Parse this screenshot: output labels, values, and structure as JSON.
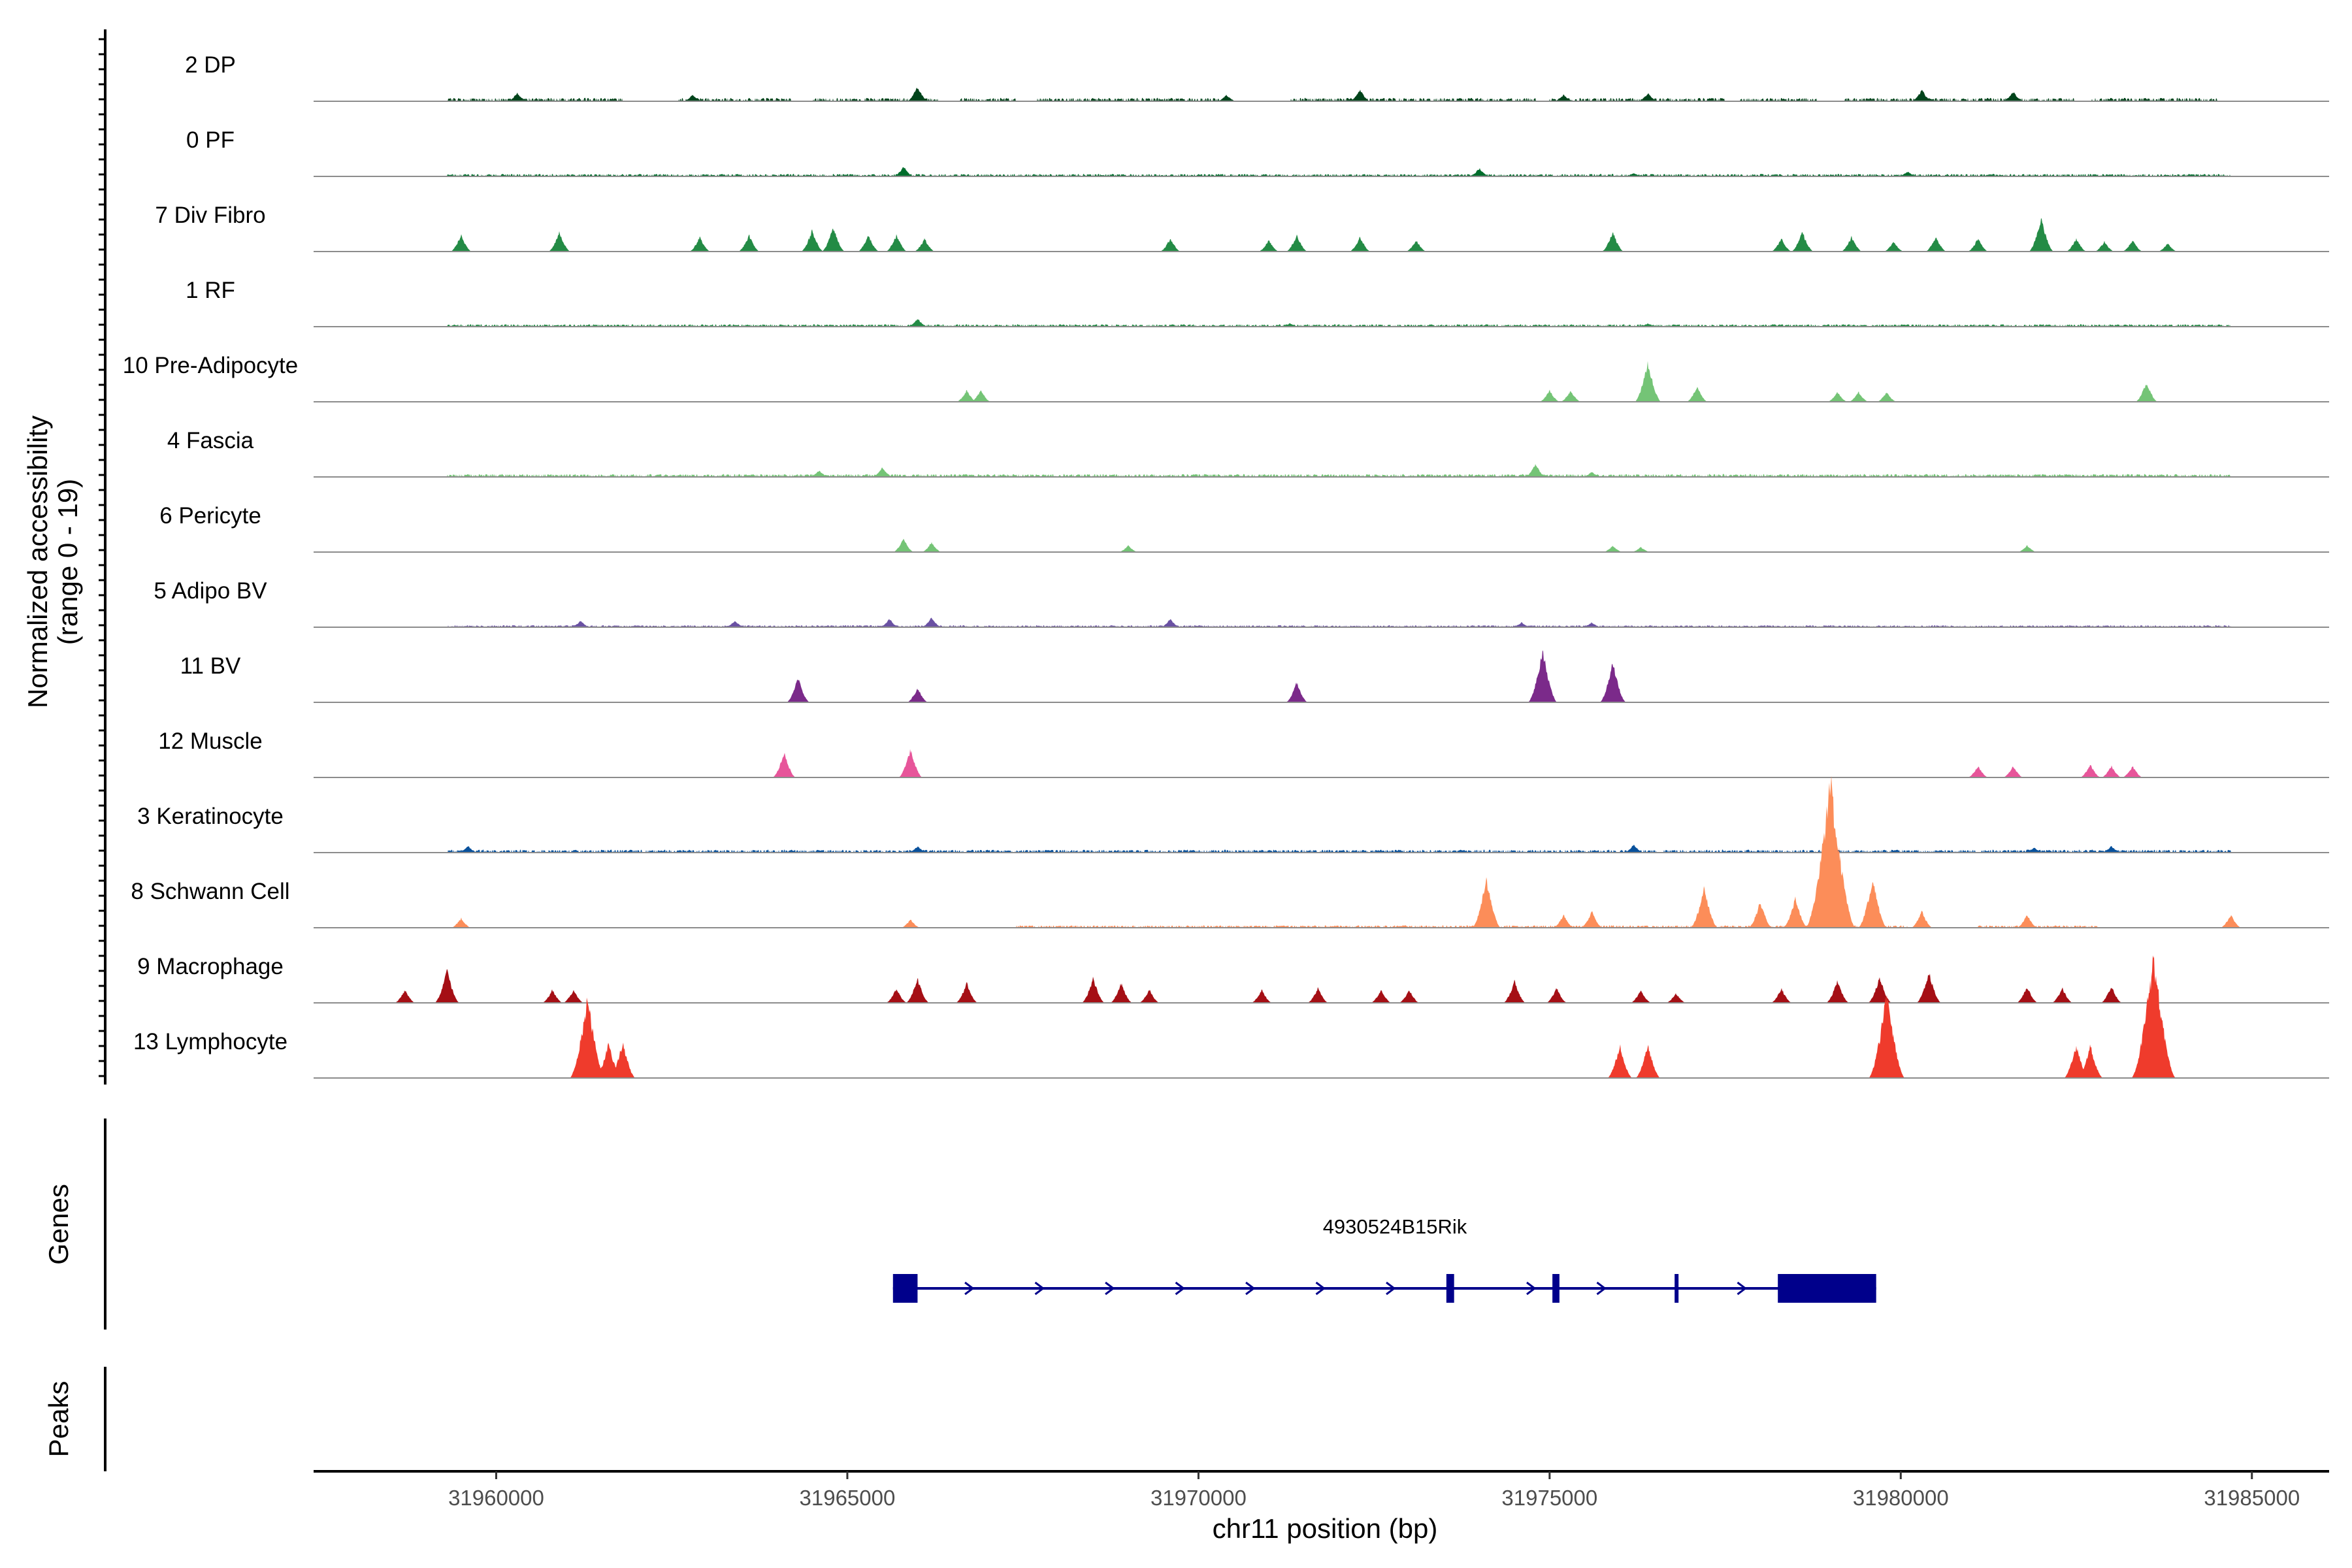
{
  "chart_data": {
    "type": "area",
    "subtype": "genome-coverage-tracks",
    "xlabel": "chr11 position (bp)",
    "ylabel": "Normalized accessibility",
    "ylabel_range": "(range 0 - 19)",
    "ylim": [
      0,
      19
    ],
    "xlim": [
      31957400,
      31986100
    ],
    "x_ticks": [
      31960000,
      31965000,
      31970000,
      31975000,
      31980000,
      31985000
    ],
    "x_tick_labels": [
      "31960000",
      "31965000",
      "31970000",
      "31975000",
      "31980000",
      "31985000"
    ],
    "genes_label": "Genes",
    "peaks_label": "Peaks",
    "series": [
      {
        "name": "2 DP",
        "color": "#00441b",
        "noise": 0.07,
        "regions": [
          [
            31959300,
            31961800
          ],
          [
            31962600,
            31964200
          ],
          [
            31964500,
            31966300
          ],
          [
            31966600,
            31967400
          ],
          [
            31967700,
            31970300
          ],
          [
            31971300,
            31974800
          ],
          [
            31975000,
            31977500
          ],
          [
            31977700,
            31978800
          ],
          [
            31979200,
            31982500
          ],
          [
            31982700,
            31984500
          ]
        ],
        "peaks": [
          [
            31960300,
            0.5
          ],
          [
            31962800,
            0.4
          ],
          [
            31966000,
            0.9
          ],
          [
            31970400,
            0.4
          ],
          [
            31972300,
            0.7
          ],
          [
            31975200,
            0.4
          ],
          [
            31976400,
            0.5
          ],
          [
            31980300,
            0.7
          ],
          [
            31981600,
            0.6
          ]
        ]
      },
      {
        "name": "0 PF",
        "color": "#006d2c",
        "noise": 0.05,
        "regions": [
          [
            31959300,
            31984700
          ]
        ],
        "peaks": [
          [
            31965800,
            0.6
          ],
          [
            31974000,
            0.5
          ],
          [
            31976200,
            0.2
          ],
          [
            31980100,
            0.3
          ]
        ]
      },
      {
        "name": "7 Div Fibro",
        "color": "#238b45",
        "noise": 0.05,
        "regions": [],
        "peaks": [
          [
            31959500,
            1.0
          ],
          [
            31960900,
            1.2
          ],
          [
            31962900,
            0.9
          ],
          [
            31963600,
            1.0
          ],
          [
            31964500,
            1.3
          ],
          [
            31964800,
            1.5
          ],
          [
            31965300,
            1.0
          ],
          [
            31965700,
            1.0
          ],
          [
            31966100,
            0.8
          ],
          [
            31969600,
            0.8
          ],
          [
            31971000,
            0.7
          ],
          [
            31971400,
            1.0
          ],
          [
            31972300,
            0.9
          ],
          [
            31973100,
            0.7
          ],
          [
            31975900,
            1.2
          ],
          [
            31978300,
            0.8
          ],
          [
            31978600,
            1.2
          ],
          [
            31979300,
            0.9
          ],
          [
            31979900,
            0.6
          ],
          [
            31980500,
            0.9
          ],
          [
            31981100,
            0.8
          ],
          [
            31982000,
            2.0
          ],
          [
            31982500,
            0.8
          ],
          [
            31982900,
            0.6
          ],
          [
            31983300,
            0.7
          ],
          [
            31983800,
            0.5
          ]
        ]
      },
      {
        "name": "1 RF",
        "color": "#238b45",
        "noise": 0.05,
        "regions": [
          [
            31959300,
            31984700
          ]
        ],
        "peaks": [
          [
            31966000,
            0.5
          ],
          [
            31971300,
            0.2
          ],
          [
            31976400,
            0.2
          ]
        ]
      },
      {
        "name": "10 Pre-Adipocyte",
        "color": "#74c476",
        "noise": 0.05,
        "regions": [],
        "peaks": [
          [
            31966700,
            0.7
          ],
          [
            31966900,
            0.7
          ],
          [
            31975000,
            0.7
          ],
          [
            31975300,
            0.7
          ],
          [
            31976400,
            2.4
          ],
          [
            31977100,
            0.9
          ],
          [
            31979100,
            0.6
          ],
          [
            31979400,
            0.6
          ],
          [
            31979800,
            0.6
          ],
          [
            31983500,
            1.2
          ]
        ]
      },
      {
        "name": "4 Fascia",
        "color": "#74c476",
        "noise": 0.06,
        "regions": [
          [
            31959300,
            31984700
          ]
        ],
        "peaks": [
          [
            31964600,
            0.4
          ],
          [
            31965500,
            0.6
          ],
          [
            31974800,
            0.8
          ],
          [
            31975600,
            0.3
          ]
        ]
      },
      {
        "name": "6 Pericyte",
        "color": "#74c476",
        "noise": 0.05,
        "regions": [],
        "peaks": [
          [
            31965800,
            0.8
          ],
          [
            31966200,
            0.6
          ],
          [
            31969000,
            0.4
          ],
          [
            31975900,
            0.4
          ],
          [
            31976300,
            0.3
          ],
          [
            31981800,
            0.4
          ]
        ]
      },
      {
        "name": "5 Adipo BV",
        "color": "#6a51a3",
        "noise": 0.04,
        "regions": [
          [
            31959300,
            31984700
          ]
        ],
        "peaks": [
          [
            31961200,
            0.4
          ],
          [
            31963400,
            0.4
          ],
          [
            31965600,
            0.5
          ],
          [
            31966200,
            0.6
          ],
          [
            31969600,
            0.5
          ],
          [
            31974600,
            0.3
          ],
          [
            31975600,
            0.3
          ]
        ]
      },
      {
        "name": "11 BV",
        "color": "#7b2a8a",
        "noise": 0.05,
        "regions": [],
        "peaks": [
          [
            31964300,
            1.5
          ],
          [
            31966000,
            0.9
          ],
          [
            31971400,
            1.2
          ],
          [
            31974900,
            3.2
          ],
          [
            31975900,
            2.4
          ]
        ]
      },
      {
        "name": "12 Muscle",
        "color": "#e7559a",
        "noise": 0.05,
        "regions": [],
        "peaks": [
          [
            31964100,
            1.5
          ],
          [
            31965900,
            1.7
          ],
          [
            31981100,
            0.7
          ],
          [
            31981600,
            0.7
          ],
          [
            31982700,
            0.8
          ],
          [
            31983000,
            0.7
          ],
          [
            31983300,
            0.7
          ]
        ]
      },
      {
        "name": "3 Keratinocyte",
        "color": "#08519c",
        "noise": 0.06,
        "regions": [
          [
            31959300,
            31984700
          ]
        ],
        "peaks": [
          [
            31959600,
            0.4
          ],
          [
            31966000,
            0.4
          ],
          [
            31976200,
            0.5
          ],
          [
            31981900,
            0.3
          ],
          [
            31983000,
            0.4
          ]
        ]
      },
      {
        "name": "8 Schwann Cell",
        "color": "#fc8d59",
        "noise": 0.05,
        "regions": [
          [
            31967400,
            31980100
          ],
          [
            31981100,
            31982800
          ]
        ],
        "peaks": [
          [
            31959500,
            0.6
          ],
          [
            31965900,
            0.5
          ],
          [
            31974100,
            3.0
          ],
          [
            31975200,
            0.8
          ],
          [
            31975600,
            1.0
          ],
          [
            31977200,
            2.5
          ],
          [
            31978000,
            1.6
          ],
          [
            31978500,
            1.8
          ],
          [
            31979000,
            9.0
          ],
          [
            31979600,
            3.0
          ],
          [
            31980300,
            1.0
          ],
          [
            31981800,
            0.8
          ],
          [
            31984700,
            0.8
          ]
        ]
      },
      {
        "name": "9 Macrophage",
        "color": "#a50f15",
        "noise": 0.05,
        "regions": [],
        "peaks": [
          [
            31958700,
            0.8
          ],
          [
            31959300,
            2.0
          ],
          [
            31960800,
            0.8
          ],
          [
            31961100,
            0.8
          ],
          [
            31965700,
            0.9
          ],
          [
            31966000,
            1.5
          ],
          [
            31966700,
            1.2
          ],
          [
            31968500,
            1.5
          ],
          [
            31968900,
            1.2
          ],
          [
            31969300,
            0.8
          ],
          [
            31970900,
            0.8
          ],
          [
            31971700,
            0.9
          ],
          [
            31972600,
            0.8
          ],
          [
            31973000,
            0.8
          ],
          [
            31974500,
            1.3
          ],
          [
            31975100,
            0.9
          ],
          [
            31976300,
            0.8
          ],
          [
            31976800,
            0.6
          ],
          [
            31978300,
            0.9
          ],
          [
            31979100,
            1.4
          ],
          [
            31979700,
            1.6
          ],
          [
            31980400,
            1.9
          ],
          [
            31981800,
            1.0
          ],
          [
            31982300,
            0.9
          ],
          [
            31983000,
            1.0
          ]
        ]
      },
      {
        "name": "13 Lymphocyte",
        "color": "#ef3b2c",
        "noise": 0.05,
        "regions": [],
        "peaks": [
          [
            31961300,
            5.0
          ],
          [
            31961600,
            2.2
          ],
          [
            31961800,
            2.2
          ],
          [
            31976000,
            2.0
          ],
          [
            31976400,
            2.0
          ],
          [
            31979800,
            5.2
          ],
          [
            31982500,
            2.0
          ],
          [
            31982700,
            2.0
          ],
          [
            31983600,
            7.5
          ]
        ]
      }
    ],
    "gene": {
      "name": "4930524B15Rik",
      "start": 31965650,
      "end": 31979650,
      "strand": "+",
      "color": "#00008b",
      "exons": [
        [
          31965650,
          31966000
        ],
        [
          31973530,
          31973640
        ],
        [
          31975040,
          31975140
        ],
        [
          31976780,
          31976820
        ],
        [
          31978250,
          31979650
        ]
      ]
    },
    "peaks_track": []
  }
}
